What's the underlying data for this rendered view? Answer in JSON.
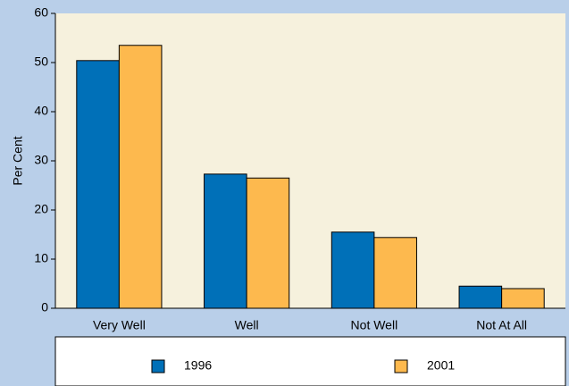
{
  "chart_data": {
    "type": "bar",
    "y_label": "Per Cent",
    "categories": [
      "Very Well",
      "Well",
      "Not Well",
      "Not At All"
    ],
    "series": [
      {
        "name": "1996",
        "color": "#0070b8",
        "values": [
          50.4,
          27.3,
          15.5,
          4.5
        ]
      },
      {
        "name": "2001",
        "color": "#fdb94e",
        "values": [
          53.5,
          26.5,
          14.4,
          4.0
        ]
      }
    ],
    "ylim": [
      0,
      60
    ],
    "yticks": [
      0,
      10,
      20,
      30,
      40,
      50,
      60
    ],
    "grid": false
  }
}
